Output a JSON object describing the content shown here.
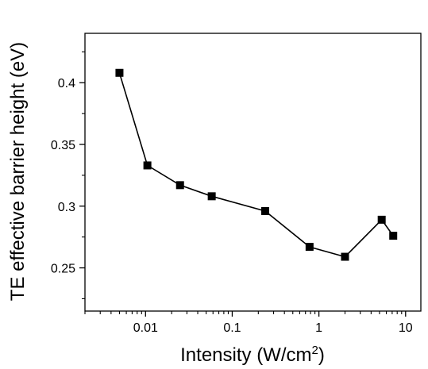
{
  "chart_data": {
    "type": "line",
    "xscale": "log",
    "xlabel": "Intensity (W/cm",
    "xlabel_sup": "2",
    "xlabel_end": ")",
    "ylabel": "TE effective barrier height (eV)",
    "xlim": [
      0.002,
      15
    ],
    "ylim": [
      0.215,
      0.44
    ],
    "x_ticks": [
      0.01,
      0.1,
      1,
      10
    ],
    "x_tick_labels": [
      "0.01",
      "0.1",
      "1",
      "10"
    ],
    "y_ticks": [
      0.25,
      0.3,
      0.35,
      0.4
    ],
    "y_tick_labels": [
      "0.25",
      "0.3",
      "0.35",
      "0.4"
    ],
    "grid": false,
    "marker": "square",
    "color": "#000000",
    "series": [
      {
        "x": [
          0.005,
          0.0105,
          0.025,
          0.058,
          0.24,
          0.78,
          2.0,
          5.3,
          7.2
        ],
        "y": [
          0.408,
          0.333,
          0.317,
          0.308,
          0.296,
          0.267,
          0.259,
          0.289,
          0.276
        ]
      }
    ]
  }
}
